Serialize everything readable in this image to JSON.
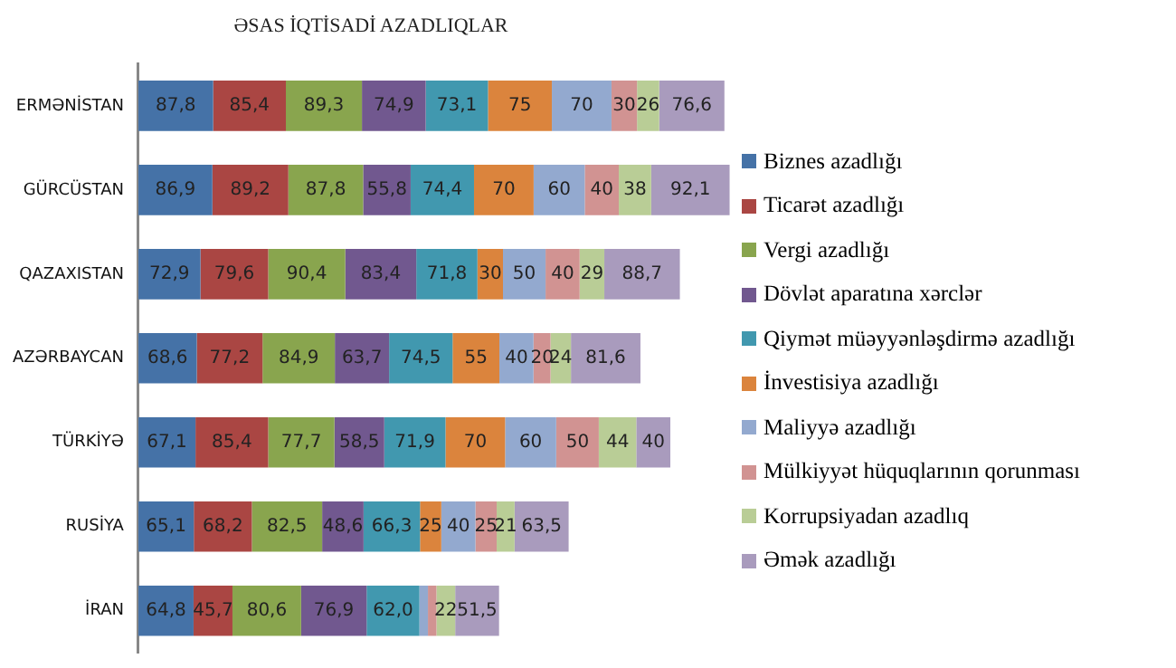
{
  "chart_data": {
    "type": "bar",
    "orientation": "horizontal",
    "stacked": true,
    "title": "ƏSAS İQTİSADİ AZADLIQLAR",
    "categories": [
      "ERMƏNİSTAN",
      "GÜRCÜSTAN",
      "QAZAXISTAN",
      "AZƏRBAYCAN",
      "TÜRKİYƏ",
      "RUSİYA",
      "İRAN"
    ],
    "series": [
      {
        "name": "Biznes azadlığı",
        "color": "#4572a7",
        "values": [
          87.8,
          86.9,
          72.9,
          68.6,
          67.1,
          65.1,
          64.8
        ],
        "value_labels": [
          "87,8",
          "86,9",
          "72,9",
          "68,6",
          "67,1",
          "65,1",
          "64,8"
        ]
      },
      {
        "name": "Ticarət azadlığı",
        "color": "#aa4643",
        "values": [
          85.4,
          89.2,
          79.6,
          77.2,
          85.4,
          68.2,
          45.7
        ],
        "value_labels": [
          "85,4",
          "89,2",
          "79,6",
          "77,2",
          "85,4",
          "68,2",
          "45,7"
        ]
      },
      {
        "name": "Vergi azadlığı",
        "color": "#89a54e",
        "values": [
          89.3,
          87.8,
          90.4,
          84.9,
          77.7,
          82.5,
          80.6
        ],
        "value_labels": [
          "89,3",
          "87,8",
          "90,4",
          "84,9",
          "77,7",
          "82,5",
          "80,6"
        ]
      },
      {
        "name": "Dövlət aparatına xərclər",
        "color": "#71588f",
        "values": [
          74.9,
          55.8,
          83.4,
          63.7,
          58.5,
          48.6,
          76.9
        ],
        "value_labels": [
          "74,9",
          "55,8",
          "83,4",
          "63,7",
          "58,5",
          "48,6",
          "76,9"
        ]
      },
      {
        "name": "Qiymət müəyyənləşdirmə  azadlığı",
        "color": "#4198af",
        "values": [
          73.1,
          74.4,
          71.8,
          74.5,
          71.9,
          66.3,
          62.0
        ],
        "value_labels": [
          "73,1",
          "74,4",
          "71,8",
          "74,5",
          "71,9",
          "66,3",
          "62,0"
        ]
      },
      {
        "name": "İnvestisiya azadlığı",
        "color": "#db843d",
        "values": [
          75,
          70,
          30,
          55,
          70,
          25,
          0
        ],
        "value_labels": [
          "75",
          "70",
          "30",
          "55",
          "70",
          "25",
          null
        ]
      },
      {
        "name": "Maliyyə azadlığı",
        "color": "#93a9cf",
        "values": [
          70,
          60,
          50,
          40,
          60,
          40,
          10
        ],
        "value_labels": [
          "70",
          "60",
          "50",
          "40",
          "60",
          "40",
          null
        ]
      },
      {
        "name": "Mülkiyyət hüquqlarının qorunması",
        "color": "#d19392",
        "values": [
          30,
          40,
          40,
          20,
          50,
          25,
          10
        ],
        "value_labels": [
          "30",
          "40",
          "40",
          "20",
          "50",
          "25",
          null
        ]
      },
      {
        "name": "Korrupsiyadan azadlıq",
        "color": "#b9cd96",
        "values": [
          26,
          38,
          29,
          24,
          44,
          21,
          22
        ],
        "value_labels": [
          "26",
          "38",
          "29",
          "24",
          "44",
          "21",
          "22"
        ]
      },
      {
        "name": "Əmək azadlığı",
        "color": "#a99bbd",
        "values": [
          76.6,
          92.1,
          88.7,
          81.6,
          40,
          63.5,
          51.5
        ],
        "value_labels": [
          "76,6",
          "92,1",
          "88,7",
          "81,6",
          "40",
          "63,5",
          "51,5"
        ]
      }
    ],
    "legend": "right",
    "tick_labels": "y",
    "grid": false
  }
}
